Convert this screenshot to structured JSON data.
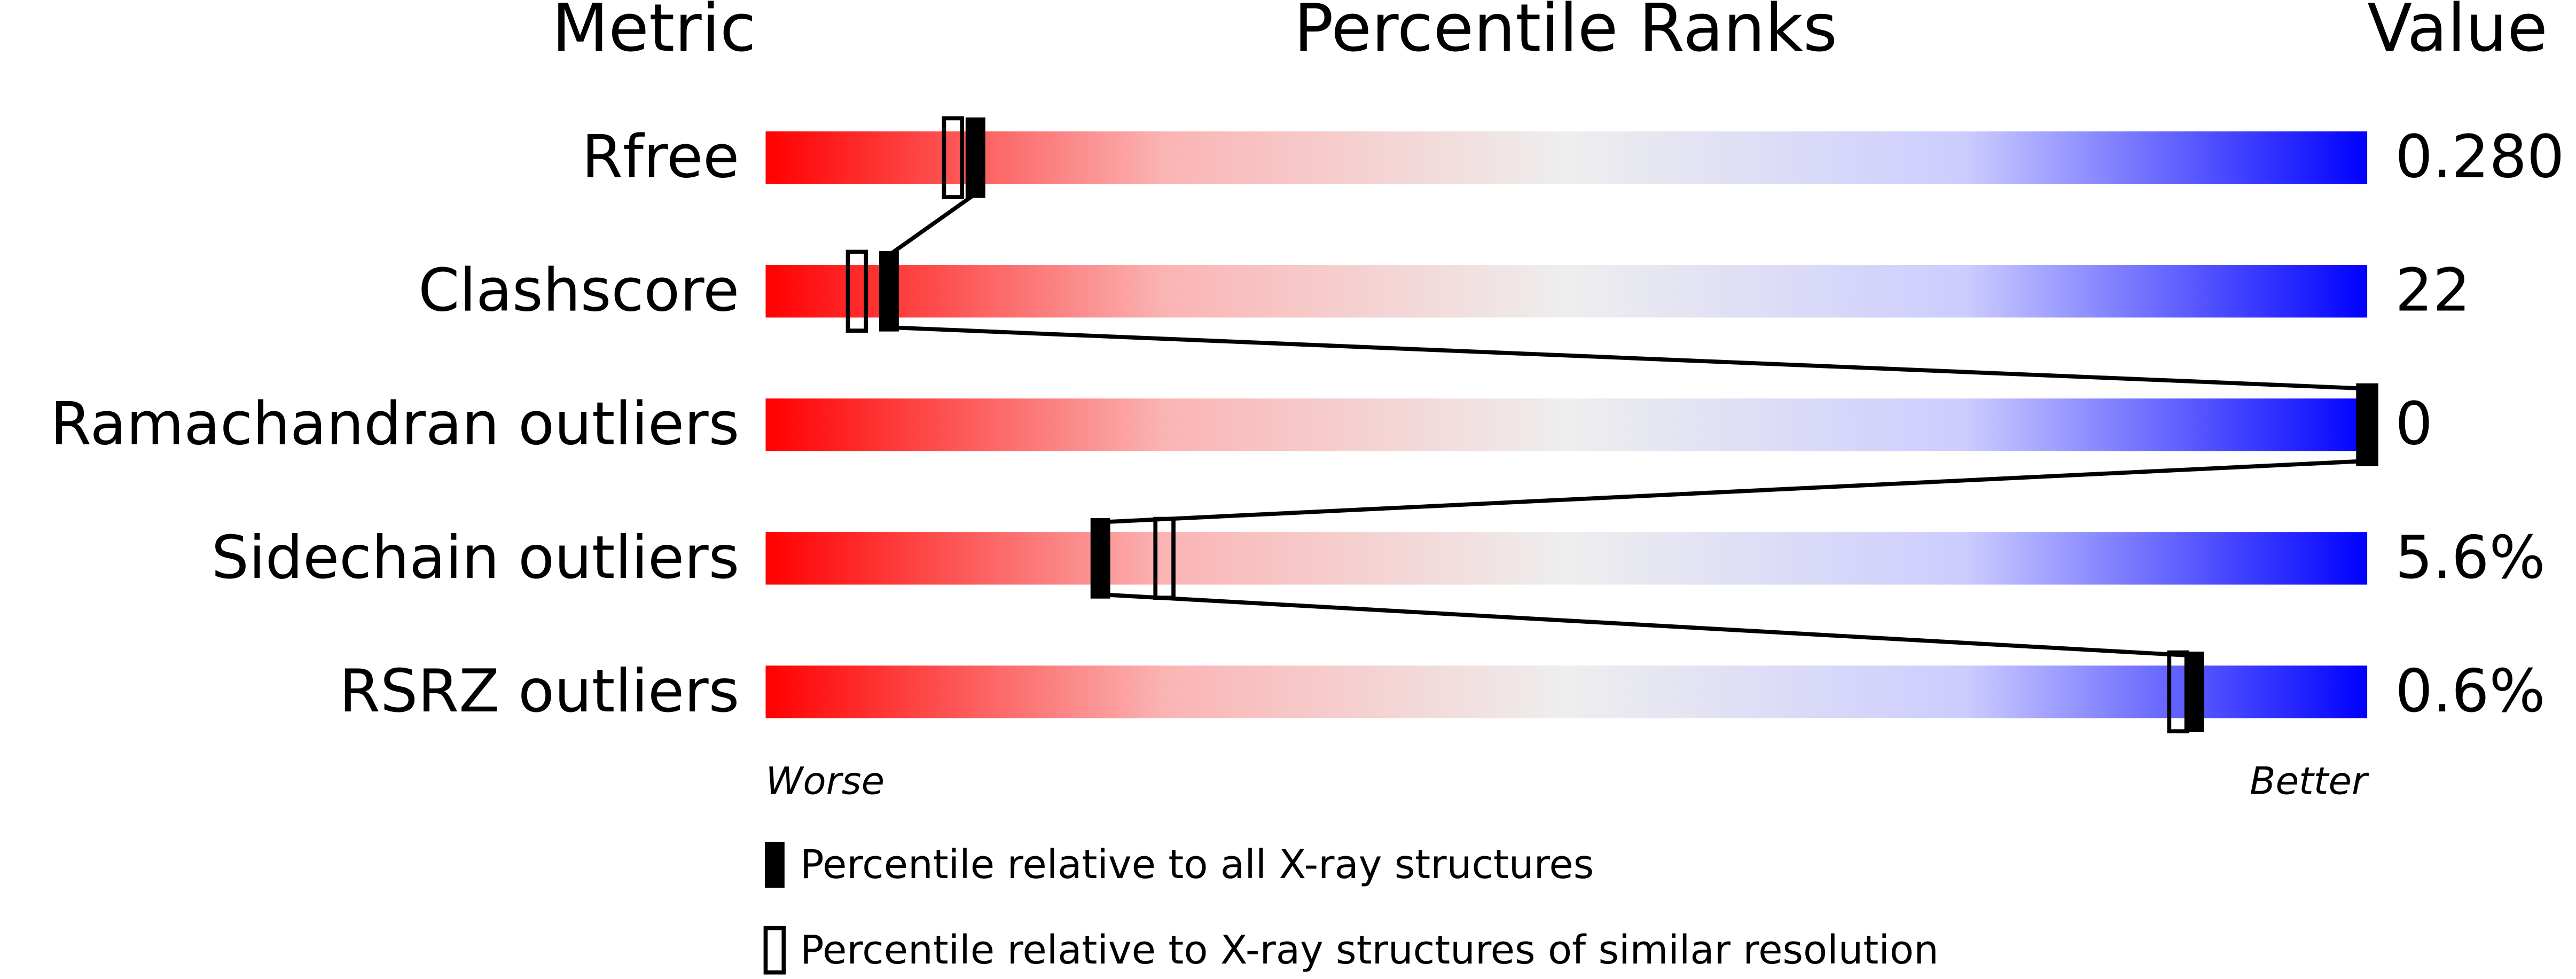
{
  "chart_data": {
    "type": "percentile",
    "headers": [
      "Metric",
      "Percentile Ranks",
      "Value"
    ],
    "categories": [
      "Rfree",
      "Clashscore",
      "Ramachandran outliers",
      "Sidechain outliers",
      "RSRZ outliers"
    ],
    "metric_values": [
      "0.280",
      "22",
      "0",
      "5.6%",
      "0.6%"
    ],
    "series": [
      {
        "name": "Percentile relative to all X-ray structures",
        "color": "#000000",
        "filled": true,
        "values": [
          13.1,
          7.7,
          100,
          20.9,
          89.2
        ]
      },
      {
        "name": "Percentile relative to X-ray structures of similar resolution",
        "color": "#000000",
        "filled": false,
        "values": [
          11.7,
          5.7,
          100,
          24.9,
          88.2
        ]
      }
    ],
    "xlim": [
      0,
      100
    ],
    "scale_labels": [
      "Worse",
      "Better"
    ],
    "gradient": [
      "#ff0000",
      "#fbb4b4",
      "#eeeeee",
      "#ccccff",
      "#0000ff"
    ]
  }
}
